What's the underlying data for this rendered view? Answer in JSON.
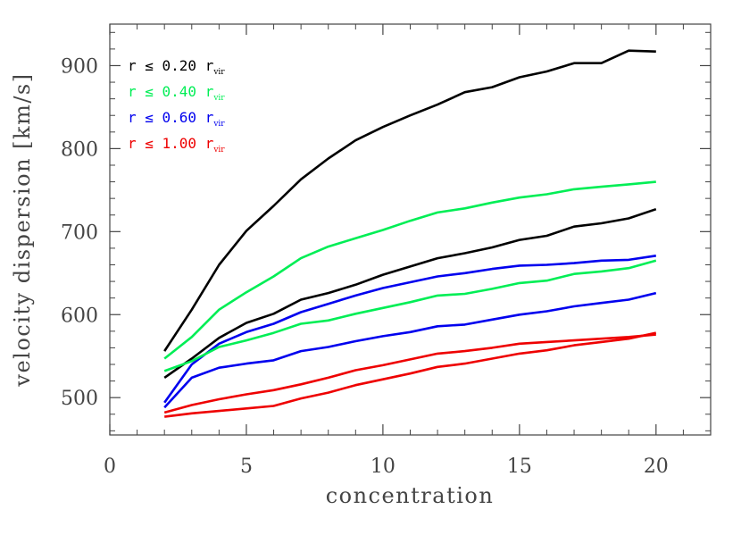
{
  "chart_data": {
    "type": "line",
    "xlabel": "concentration",
    "ylabel": "velocity dispersion [km/s]",
    "xlim": [
      0,
      22
    ],
    "ylim": [
      455,
      950
    ],
    "xticks": [
      0,
      5,
      10,
      15,
      20
    ],
    "yticks": [
      500,
      600,
      700,
      800,
      900
    ],
    "legend_position": "top-left",
    "legend": [
      {
        "prefix": "r ≤ ",
        "value": "0.20",
        "unit": " r",
        "sub": "vir",
        "color": "#000000"
      },
      {
        "prefix": "r ≤ ",
        "value": "0.40",
        "unit": " r",
        "sub": "vir",
        "color": "#00ee55"
      },
      {
        "prefix": "r ≤ ",
        "value": "0.60",
        "unit": " r",
        "sub": "vir",
        "color": "#0000ee"
      },
      {
        "prefix": "r ≤ ",
        "value": "1.00",
        "unit": " r",
        "sub": "vir",
        "color": "#ee0000"
      }
    ],
    "x": [
      2,
      3,
      4,
      5,
      6,
      7,
      8,
      9,
      10,
      11,
      12,
      13,
      14,
      15,
      16,
      17,
      18,
      19,
      20
    ],
    "series": [
      {
        "color": "#000000",
        "values": [
          556,
          606,
          660,
          701,
          731,
          763,
          788,
          810,
          826,
          840,
          853,
          868,
          874,
          886,
          893,
          903,
          903,
          918,
          917
        ]
      },
      {
        "color": "#00ee55",
        "values": [
          547,
          573,
          606,
          627,
          646,
          668,
          682,
          692,
          702,
          713,
          723,
          728,
          735,
          741,
          745,
          751,
          754,
          757,
          760
        ]
      },
      {
        "color": "#000000",
        "values": [
          524,
          547,
          572,
          590,
          601,
          618,
          626,
          636,
          648,
          658,
          668,
          674,
          681,
          690,
          695,
          706,
          710,
          716,
          727
        ]
      },
      {
        "color": "#0000ee",
        "values": [
          494,
          540,
          565,
          579,
          589,
          603,
          613,
          623,
          632,
          639,
          646,
          650,
          655,
          659,
          660,
          662,
          665,
          666,
          671
        ]
      },
      {
        "color": "#00ee55",
        "values": [
          532,
          544,
          561,
          569,
          578,
          589,
          593,
          601,
          608,
          615,
          623,
          625,
          631,
          638,
          641,
          649,
          652,
          656,
          665
        ]
      },
      {
        "color": "#0000ee",
        "values": [
          488,
          524,
          536,
          541,
          545,
          556,
          561,
          568,
          574,
          579,
          586,
          588,
          594,
          600,
          604,
          610,
          614,
          618,
          626
        ]
      },
      {
        "color": "#ee0000",
        "values": [
          482,
          491,
          498,
          504,
          509,
          516,
          524,
          533,
          539,
          546,
          553,
          556,
          560,
          565,
          567,
          569,
          571,
          573,
          576
        ]
      },
      {
        "color": "#ee0000",
        "values": [
          477,
          481,
          484,
          487,
          490,
          499,
          506,
          515,
          522,
          529,
          537,
          541,
          547,
          553,
          557,
          563,
          567,
          571,
          578
        ]
      }
    ]
  }
}
